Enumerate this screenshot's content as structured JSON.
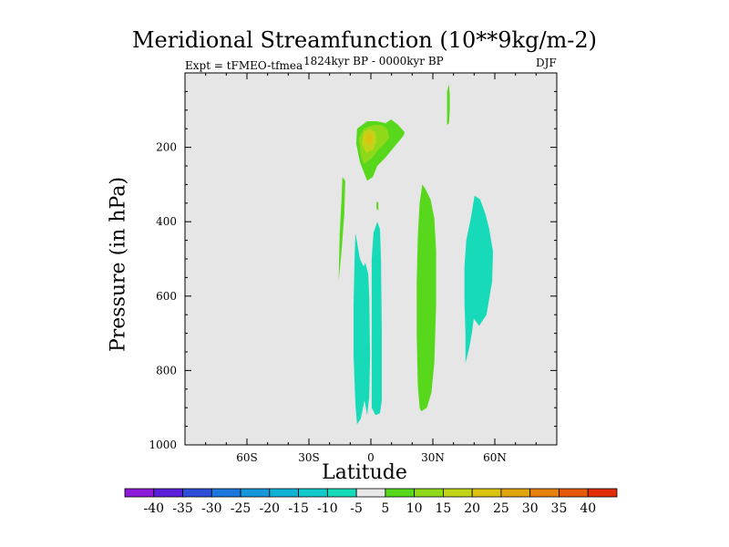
{
  "chart_data": {
    "type": "contour",
    "title": "Meridional Streamfunction (10**9kg/m-2)",
    "experiment_label": "Expt = tFMEO-tfmea",
    "period_label": "1824kyr BP - 0000kyr BP",
    "season_label": "DJF",
    "xlabel": "Latitude",
    "ylabel": "Pressure (in hPa)",
    "xlim": [
      -90,
      90
    ],
    "ylim": [
      0,
      1000
    ],
    "x_ticks": [
      {
        "value": -60,
        "label": "60S"
      },
      {
        "value": -30,
        "label": "30S"
      },
      {
        "value": 0,
        "label": "0"
      },
      {
        "value": 30,
        "label": "30N"
      },
      {
        "value": 60,
        "label": "60N"
      }
    ],
    "y_ticks": [
      {
        "value": 200,
        "label": "200"
      },
      {
        "value": 400,
        "label": "400"
      },
      {
        "value": 600,
        "label": "600"
      },
      {
        "value": 800,
        "label": "800"
      },
      {
        "value": 1000,
        "label": "1000"
      }
    ],
    "background_color": "#e6e6e6",
    "colorbar": {
      "labels": [
        "-40",
        "-35",
        "-30",
        "-25",
        "-20",
        "-15",
        "-10",
        "-5",
        "5",
        "10",
        "15",
        "20",
        "25",
        "30",
        "35",
        "40"
      ],
      "colors": [
        "#8c1ad6",
        "#5a1fd9",
        "#2d4fd8",
        "#1c77dc",
        "#1596d8",
        "#10b3d6",
        "#12c9cc",
        "#17dbb8",
        "#e8e8e8",
        "#58d81c",
        "#8fd81a",
        "#c2d417",
        "#dcc30f",
        "#e0a40c",
        "#e5800b",
        "#e55a0a",
        "#e02d08"
      ]
    },
    "regions": [
      {
        "level": "-10 to -5",
        "color": "#17dbb8",
        "points": [
          [
            -6.7,
            944
          ],
          [
            -7.5,
            890
          ],
          [
            -8.4,
            760
          ],
          [
            -8.4,
            620
          ],
          [
            -7.9,
            500
          ],
          [
            -7.5,
            430
          ],
          [
            -5.3,
            500
          ],
          [
            -3.5,
            520
          ],
          [
            -2.7,
            510
          ],
          [
            -1.3,
            540
          ],
          [
            -0.8,
            600
          ],
          [
            -0.4,
            760
          ],
          [
            -0.8,
            870
          ],
          [
            -1.8,
            920
          ],
          [
            -3.1,
            880
          ],
          [
            -4.9,
            930
          ]
        ]
      },
      {
        "level": "-10 to -5",
        "color": "#17dbb8",
        "points": [
          [
            0.4,
            900
          ],
          [
            2.2,
            920
          ],
          [
            4.4,
            915
          ],
          [
            5.3,
            880
          ],
          [
            5.3,
            700
          ],
          [
            4.9,
            500
          ],
          [
            4.4,
            420
          ],
          [
            3.1,
            400
          ],
          [
            1.3,
            430
          ],
          [
            0.4,
            500
          ],
          [
            0.4,
            700
          ]
        ]
      },
      {
        "level": "-10 to -5",
        "color": "#17dbb8",
        "points": [
          [
            45.8,
            780
          ],
          [
            47.6,
            740
          ],
          [
            48.9,
            700
          ],
          [
            49.8,
            660
          ],
          [
            52.4,
            680
          ],
          [
            56.0,
            650
          ],
          [
            58.7,
            560
          ],
          [
            59.1,
            480
          ],
          [
            57.3,
            420
          ],
          [
            55.5,
            380
          ],
          [
            52.9,
            340
          ],
          [
            50.2,
            330
          ],
          [
            48.4,
            390
          ],
          [
            46.2,
            450
          ],
          [
            45.3,
            520
          ],
          [
            45.3,
            620
          ],
          [
            45.8,
            700
          ]
        ]
      },
      {
        "level": "5 to 10",
        "color": "#58d81c",
        "points": [
          [
            24.4,
            910
          ],
          [
            27.1,
            900
          ],
          [
            29.3,
            860
          ],
          [
            30.7,
            780
          ],
          [
            31.6,
            620
          ],
          [
            31.6,
            480
          ],
          [
            30.7,
            390
          ],
          [
            28.9,
            340
          ],
          [
            26.2,
            310
          ],
          [
            24.9,
            300
          ],
          [
            23.6,
            350
          ],
          [
            22.7,
            440
          ],
          [
            22.2,
            560
          ],
          [
            22.2,
            700
          ],
          [
            22.7,
            840
          ],
          [
            23.6,
            900
          ]
        ]
      },
      {
        "level": "5 to 10",
        "color": "#58d81c",
        "points": [
          [
            -15.6,
            560
          ],
          [
            -15.1,
            430
          ],
          [
            -14.2,
            340
          ],
          [
            -13.8,
            280
          ],
          [
            -12.4,
            290
          ],
          [
            -12.9,
            380
          ],
          [
            -14.2,
            480
          ]
        ]
      },
      {
        "level": "5 to 10",
        "color": "#58d81c",
        "points": [
          [
            -1.8,
            290
          ],
          [
            0.9,
            280
          ],
          [
            3.1,
            250
          ],
          [
            6.7,
            230
          ],
          [
            11.1,
            200
          ],
          [
            15.6,
            170
          ],
          [
            16.4,
            160
          ],
          [
            13.3,
            140
          ],
          [
            9.8,
            125
          ],
          [
            7.1,
            135
          ],
          [
            3.1,
            130
          ],
          [
            -1.8,
            130
          ],
          [
            -6.7,
            150
          ],
          [
            -7.1,
            190
          ],
          [
            -5.3,
            240
          ]
        ]
      },
      {
        "level": "10 to 15",
        "color": "#8fd81a",
        "points": [
          [
            -3.5,
            245
          ],
          [
            0.4,
            230
          ],
          [
            3.1,
            210
          ],
          [
            6.7,
            190
          ],
          [
            8.9,
            175
          ],
          [
            8.0,
            150
          ],
          [
            4.9,
            140
          ],
          [
            0.9,
            140
          ],
          [
            -3.5,
            150
          ],
          [
            -5.8,
            175
          ],
          [
            -4.9,
            220
          ]
        ]
      },
      {
        "level": "15 to 20",
        "color": "#c2d417",
        "points": [
          [
            -2.2,
            215
          ],
          [
            1.3,
            205
          ],
          [
            2.7,
            185
          ],
          [
            2.2,
            160
          ],
          [
            -0.8,
            150
          ],
          [
            -3.5,
            160
          ],
          [
            -4.4,
            190
          ]
        ]
      },
      {
        "level": "20 to 25",
        "color": "#dcc30f",
        "points": [
          [
            -1.3,
            195
          ],
          [
            0.4,
            190
          ],
          [
            0.9,
            175
          ],
          [
            0.0,
            162
          ],
          [
            -2.2,
            162
          ],
          [
            -2.7,
            180
          ]
        ]
      },
      {
        "level": "5 to 10",
        "color": "#58d81c",
        "points": [
          [
            3.1,
            345
          ],
          [
            3.6,
            350
          ],
          [
            3.6,
            370
          ],
          [
            2.7,
            365
          ],
          [
            2.7,
            350
          ]
        ]
      },
      {
        "level": "5 to 10",
        "color": "#58d81c",
        "points": [
          [
            36.9,
            140
          ],
          [
            37.8,
            135
          ],
          [
            38.2,
            100
          ],
          [
            38.2,
            60
          ],
          [
            37.8,
            30
          ],
          [
            36.9,
            50
          ],
          [
            36.9,
            100
          ]
        ]
      }
    ]
  }
}
